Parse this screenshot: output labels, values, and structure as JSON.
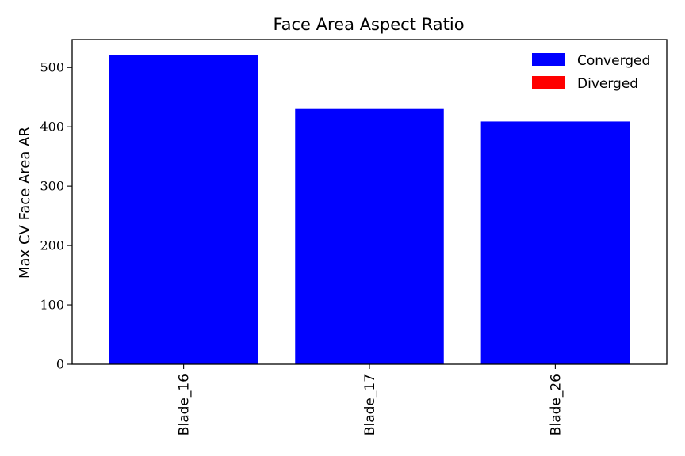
{
  "chart_data": {
    "type": "bar",
    "title": "Face Area Aspect Ratio",
    "xlabel": "",
    "ylabel": "Max CV Face Area AR",
    "categories": [
      "Blade_16",
      "Blade_17",
      "Blade_26"
    ],
    "series": [
      {
        "name": "Converged",
        "color": "#0000ff",
        "values": [
          521,
          430,
          409
        ]
      },
      {
        "name": "Diverged",
        "color": "#ff0000",
        "values": [
          0,
          0,
          0
        ]
      }
    ],
    "ylim": [
      0,
      547
    ],
    "yticks": [
      0,
      100,
      200,
      300,
      400,
      500
    ],
    "xtick_rotation": 90,
    "grid": false,
    "legend": {
      "position": "top-right",
      "entries": [
        {
          "label": "Converged",
          "color": "#0000ff"
        },
        {
          "label": "Diverged",
          "color": "#ff0000"
        }
      ]
    }
  }
}
